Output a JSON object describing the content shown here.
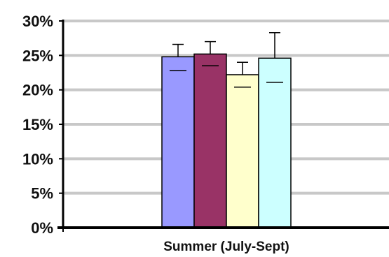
{
  "chart_data": {
    "type": "bar",
    "categories": [
      "Summer (July-Sept)"
    ],
    "series": [
      {
        "values": [
          24.8
        ],
        "error_upper": [
          26.6
        ],
        "error_lower": [
          22.8
        ],
        "color": "#9999ff"
      },
      {
        "values": [
          25.2
        ],
        "error_upper": [
          27.0
        ],
        "error_lower": [
          23.5
        ],
        "color": "#993366"
      },
      {
        "values": [
          22.2
        ],
        "error_upper": [
          24.0
        ],
        "error_lower": [
          20.4
        ],
        "color": "#ffffcc"
      },
      {
        "values": [
          24.6
        ],
        "error_upper": [
          28.3
        ],
        "error_lower": [
          21.1
        ],
        "color": "#ccffff"
      }
    ],
    "ylim": [
      0,
      30
    ],
    "yticks": [
      "0%",
      "5%",
      "10%",
      "15%",
      "20%",
      "25%",
      "30%"
    ],
    "ytick_values": [
      0,
      5,
      10,
      15,
      20,
      25,
      30
    ],
    "grid": true,
    "legend": "none"
  }
}
